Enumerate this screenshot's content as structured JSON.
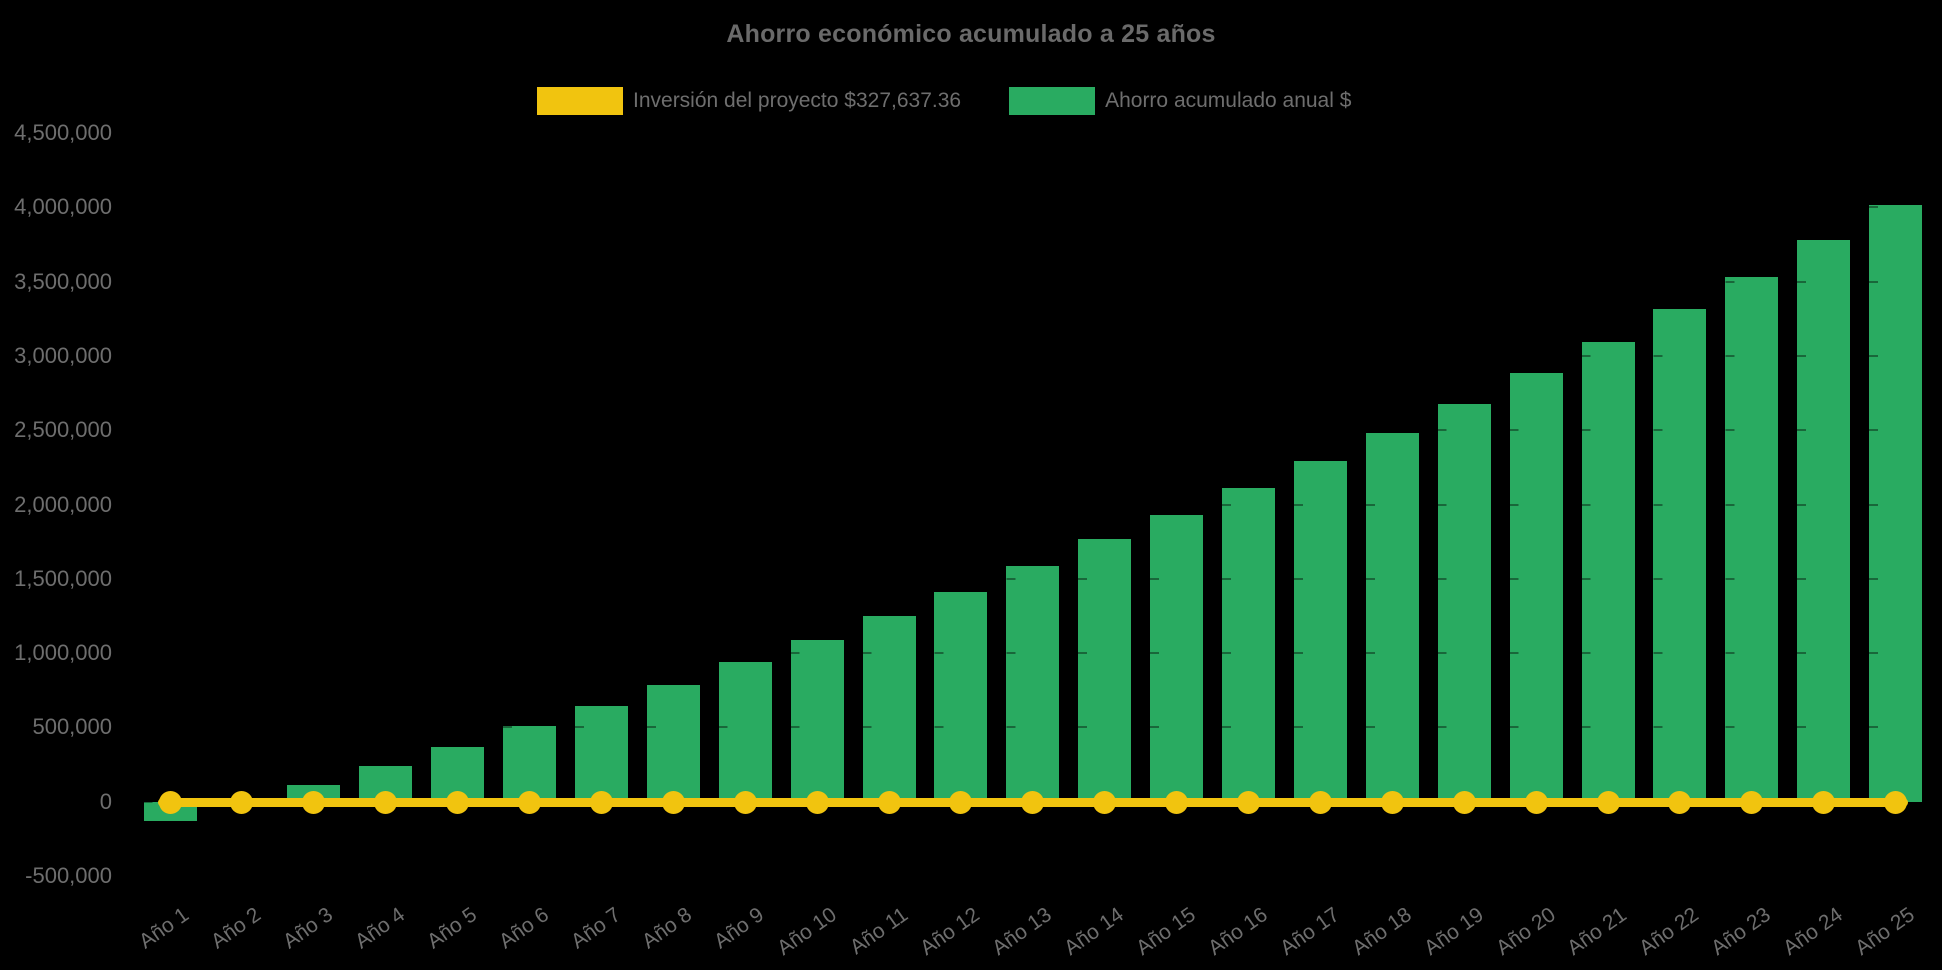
{
  "colors": {
    "bar_green": "#29AB61",
    "line_yellow": "#F1C40F",
    "text_gray": "#6E6E6E",
    "background": "#000000"
  },
  "chart_data": {
    "type": "bar",
    "title": "Ahorro económico acumulado a 25 años",
    "categories": [
      "Año 1",
      "Año 2",
      "Año 3",
      "Año 4",
      "Año 5",
      "Año 6",
      "Año 7",
      "Año 8",
      "Año 9",
      "Año 10",
      "Año 11",
      "Año 12",
      "Año 13",
      "Año 14",
      "Año 15",
      "Año 16",
      "Año 17",
      "Año 18",
      "Año 19",
      "Año 20",
      "Año 21",
      "Año 22",
      "Año 23",
      "Año 24",
      "Año 25"
    ],
    "series": [
      {
        "name": "Ahorro acumulado anual $",
        "type": "bar",
        "color": "#29AB61",
        "values": [
          -125000,
          10000,
          115000,
          245000,
          370000,
          510000,
          645000,
          790000,
          945000,
          1090000,
          1255000,
          1410000,
          1585000,
          1770000,
          1930000,
          2110000,
          2295000,
          2480000,
          2675000,
          2885000,
          3095000,
          3315000,
          3535000,
          3780000,
          4020000
        ]
      },
      {
        "name": "Inversión del proyecto $327,637.36",
        "type": "line",
        "color": "#F1C40F",
        "marker": "circle",
        "plotted_value": 0
      }
    ],
    "ylim": [
      -500000,
      4500000
    ],
    "ytick_step": 500000,
    "ytick_labels": [
      "4,500,000",
      "4,000,000",
      "3,500,000",
      "3,000,000",
      "2,500,000",
      "2,000,000",
      "1,500,000",
      "1,000,000",
      "500,000",
      "0",
      "-500,000"
    ],
    "xtick_rotation_deg": -35,
    "legend_position": "top",
    "grid": false
  }
}
